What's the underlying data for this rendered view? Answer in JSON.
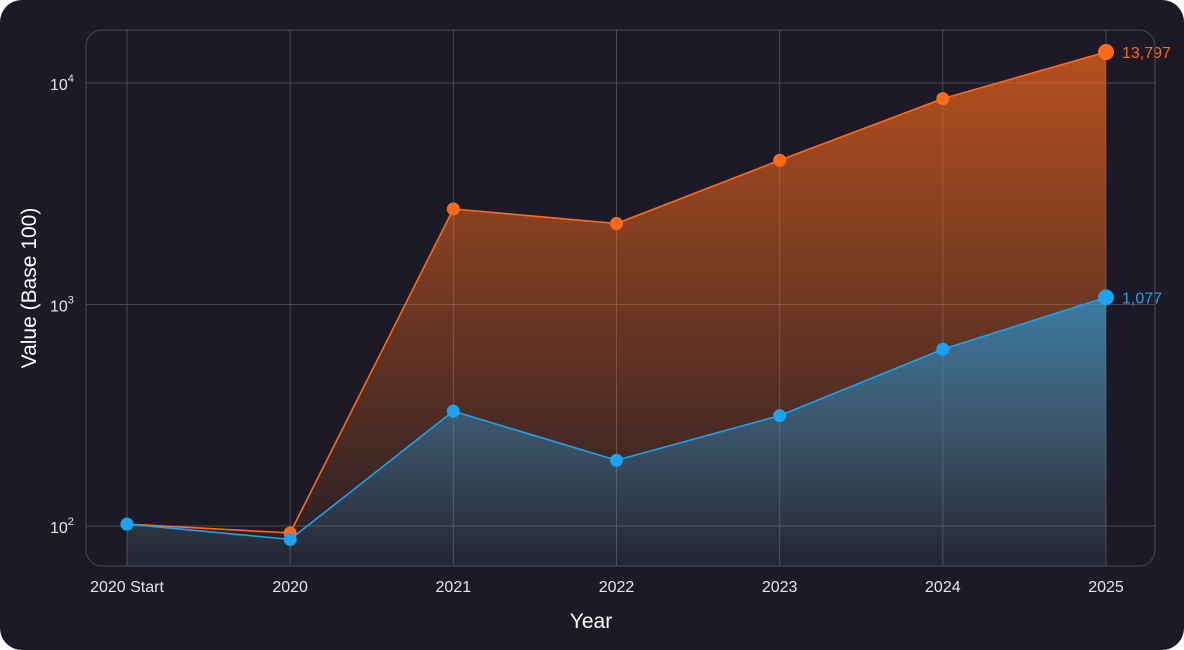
{
  "chart_data": {
    "type": "area",
    "title": "",
    "xlabel": "Year",
    "ylabel": "Value (Base 100)",
    "yscale": "log",
    "ylim": [
      80,
      17000
    ],
    "yticks": [
      {
        "value": 100,
        "base": "10",
        "exp": "2"
      },
      {
        "value": 1000,
        "base": "10",
        "exp": "3"
      },
      {
        "value": 10000,
        "base": "10",
        "exp": "4"
      }
    ],
    "categories": [
      "2020 Start",
      "2020",
      "2021",
      "2022",
      "2023",
      "2024",
      "2025"
    ],
    "series": [
      {
        "values": [
          102,
          93,
          2700,
          2320,
          4480,
          8500,
          13797
        ],
        "color": "#ff6a1a",
        "end_label": "13,797"
      },
      {
        "values": [
          102,
          87,
          330,
          198,
          315,
          628,
          1077
        ],
        "color": "#1aa3f0",
        "end_label": "1,077"
      }
    ],
    "grid": true,
    "legend": "none"
  }
}
